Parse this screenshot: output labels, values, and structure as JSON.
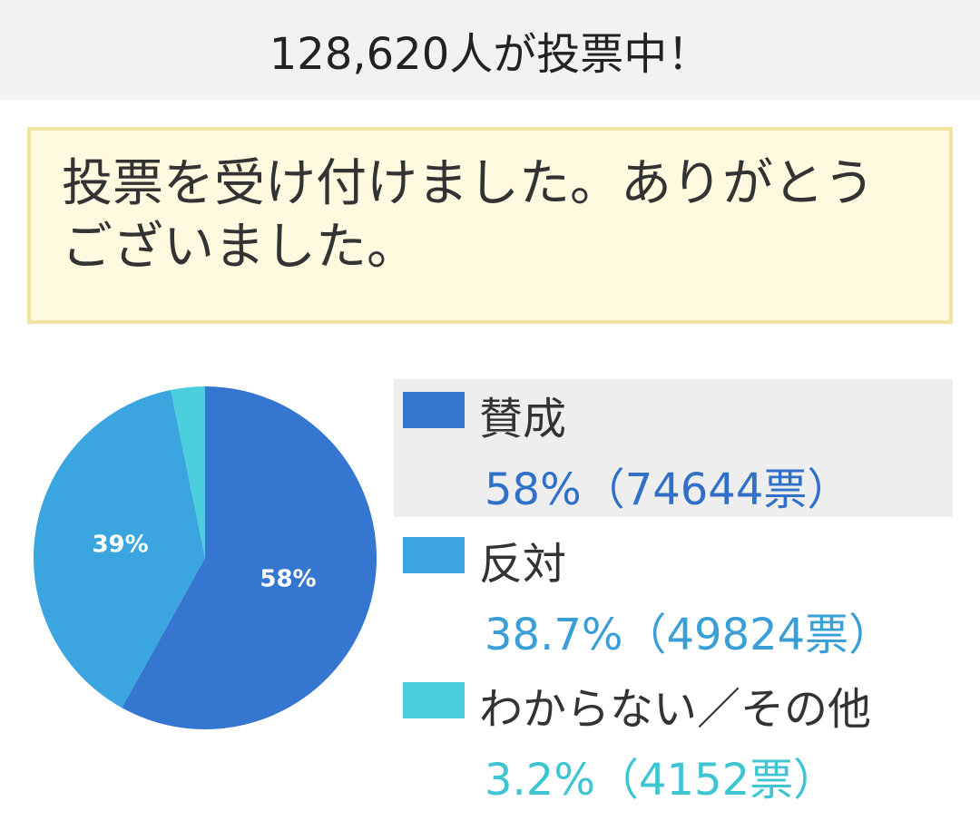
{
  "header": {
    "text": "128,620人が投票中！"
  },
  "notice": {
    "text": "投票を受け付けました。ありがとうございました。"
  },
  "chart_data": {
    "type": "pie",
    "start": "top",
    "direction": "clockwise",
    "slices": [
      {
        "name": "賛成",
        "percent": 58.0,
        "votes": 74644,
        "color": "#3576d0",
        "slice_label": "58%",
        "legend_value": "58%（74644票）",
        "value_color": "#3070c8",
        "highlighted": true
      },
      {
        "name": "反対",
        "percent": 38.7,
        "votes": 49824,
        "color": "#3ba5df",
        "slice_label": "39%",
        "legend_value": "38.7%（49824票）",
        "value_color": "#3a9fd6",
        "highlighted": false
      },
      {
        "name": "わからない／その他",
        "percent": 3.2,
        "votes": 4152,
        "color": "#4bcfdc",
        "slice_label": "",
        "legend_value": "3.2%（4152票）",
        "value_color": "#3fc4d2",
        "highlighted": false
      }
    ]
  }
}
